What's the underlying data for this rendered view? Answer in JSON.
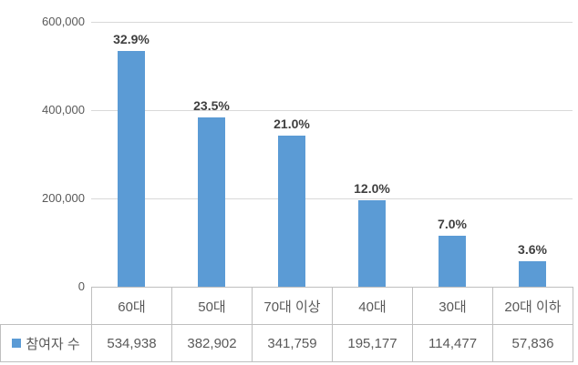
{
  "chart_data": {
    "type": "bar",
    "title": "",
    "categories": [
      "60대",
      "50대",
      "70대 이상",
      "40대",
      "30대",
      "20대 이하"
    ],
    "series": [
      {
        "name": "참여자 수",
        "values": [
          534938,
          382902,
          341759,
          195177,
          114477,
          57836
        ]
      }
    ],
    "bar_labels": [
      "32.9%",
      "23.5%",
      "21.0%",
      "12.0%",
      "7.0%",
      "3.6%"
    ],
    "value_labels": [
      "534,938",
      "382,902",
      "341,759",
      "195,177",
      "114,477",
      "57,836"
    ],
    "yticks": [
      "600,000",
      "400,000",
      "200,000",
      "0"
    ],
    "ylim": [
      0,
      600000
    ],
    "grid": true,
    "legend": {
      "label": "참여자 수",
      "position": "data-table-left"
    },
    "colors": {
      "bar": "#5b9bd5",
      "gridline": "#d9d9d9",
      "table_border": "#bfbfbf",
      "percent_text": "#3f3f3f",
      "axis_text": "#595959"
    }
  }
}
